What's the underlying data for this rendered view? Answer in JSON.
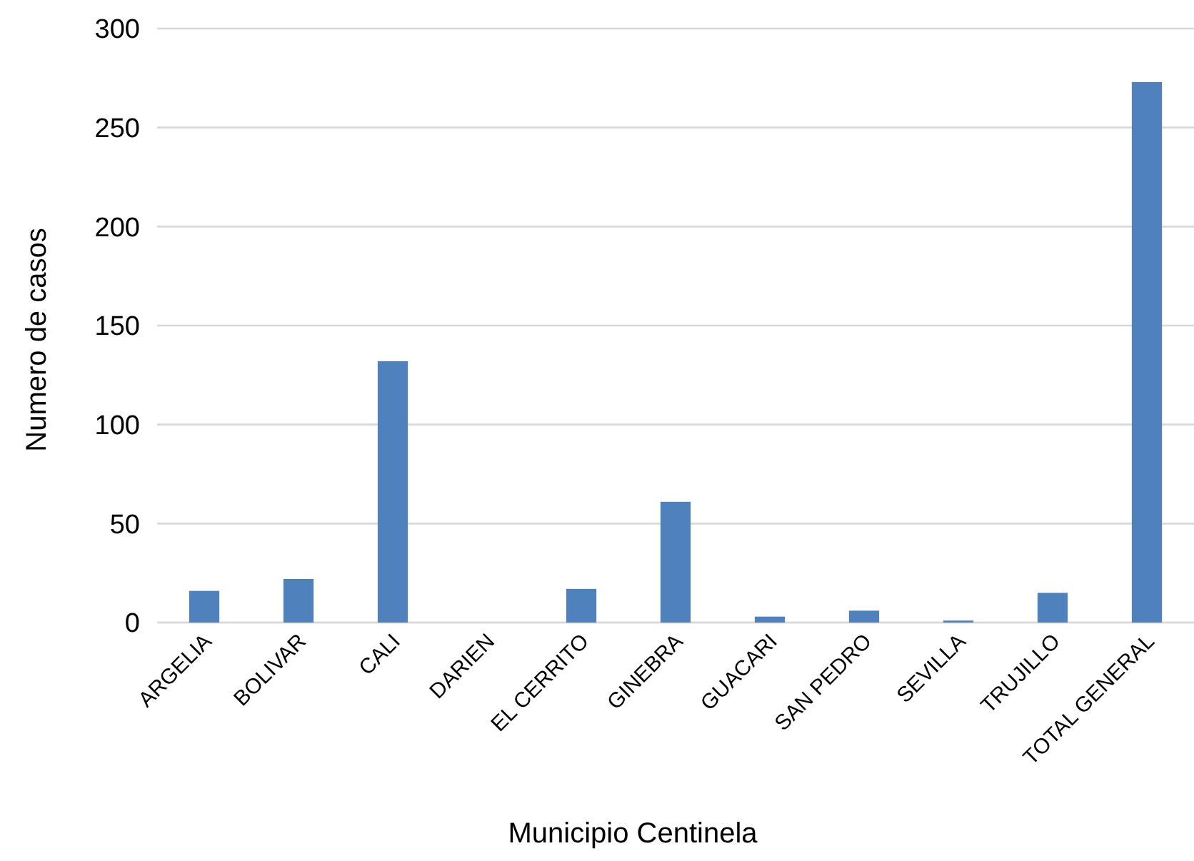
{
  "chart_data": {
    "type": "bar",
    "xlabel": "Municipio Centinela",
    "ylabel": "Numero de casos",
    "categories": [
      "ARGELIA",
      "BOLIVAR",
      "CALI",
      "DARIEN",
      "EL CERRITO",
      "GINEBRA",
      "GUACARI",
      "SAN PEDRO",
      "SEVILLA",
      "TRUJILLO",
      "TOTAL GENERAL"
    ],
    "values": [
      16,
      22,
      132,
      0,
      17,
      61,
      3,
      6,
      1,
      15,
      273
    ],
    "color": "#4f81bd",
    "ylim": [
      0,
      300
    ],
    "yticks": [
      0,
      50,
      100,
      150,
      200,
      250,
      300
    ],
    "grid": "y"
  }
}
